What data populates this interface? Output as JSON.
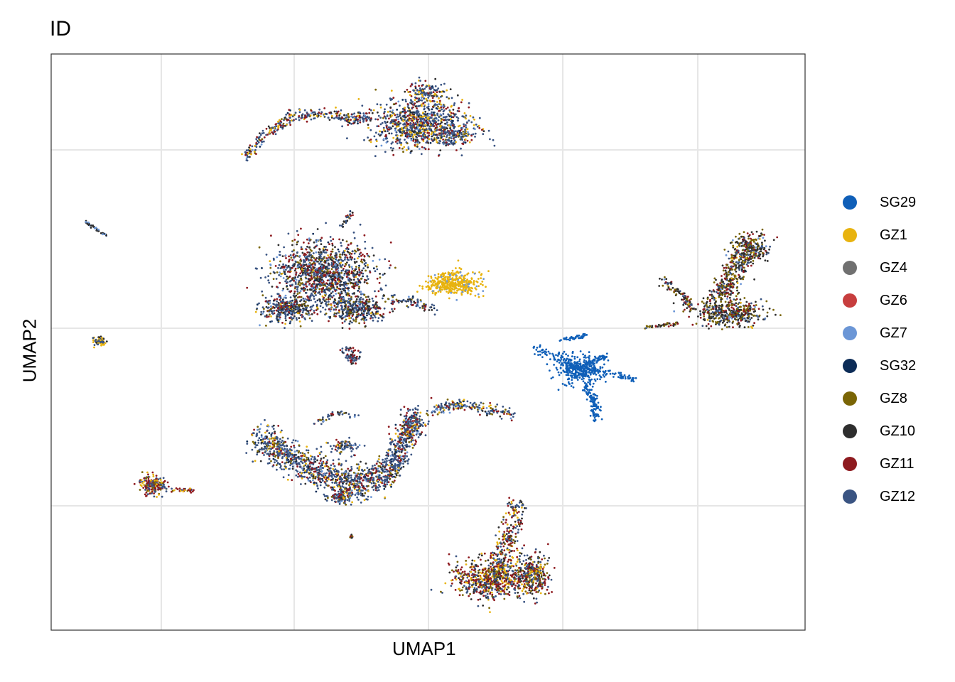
{
  "chart_data": {
    "type": "scatter",
    "title": "ID",
    "xlabel": "UMAP1",
    "ylabel": "UMAP2",
    "grid": true,
    "x_tick_labels": false,
    "y_tick_labels": false,
    "legend_position": "right",
    "legend": [
      {
        "name": "SG29",
        "color": "#0F5FB8"
      },
      {
        "name": "GZ1",
        "color": "#E8B30F"
      },
      {
        "name": "GZ4",
        "color": "#707070"
      },
      {
        "name": "GZ6",
        "color": "#C73E3E"
      },
      {
        "name": "GZ7",
        "color": "#6B96D6"
      },
      {
        "name": "SG32",
        "color": "#0C2C57"
      },
      {
        "name": "GZ8",
        "color": "#7A6505"
      },
      {
        "name": "GZ10",
        "color": "#2E2E2E"
      },
      {
        "name": "GZ11",
        "color": "#8E1A1F"
      },
      {
        "name": "GZ12",
        "color": "#3A5482"
      }
    ],
    "clusters": [
      {
        "id": "top-arc",
        "center": [
          0.5,
          0.82
        ],
        "mix": {
          "GZ12": 0.45,
          "GZ11": 0.18,
          "GZ1": 0.15,
          "GZ10": 0.08,
          "GZ7": 0.05,
          "GZ8": 0.04,
          "SG32": 0.05
        }
      },
      {
        "id": "left-tiny-streak",
        "center": [
          0.07,
          0.68
        ],
        "mix": {
          "GZ10": 0.5,
          "GZ7": 0.5
        }
      },
      {
        "id": "center-left-blob",
        "center": [
          0.38,
          0.58
        ],
        "mix": {
          "GZ12": 0.35,
          "GZ11": 0.2,
          "GZ10": 0.2,
          "GZ8": 0.12,
          "GZ7": 0.06,
          "GZ1": 0.03,
          "SG32": 0.04
        }
      },
      {
        "id": "center-yellow-patch",
        "center": [
          0.6,
          0.58
        ],
        "mix": {
          "GZ1": 0.9,
          "GZ7": 0.1
        }
      },
      {
        "id": "right-top",
        "center": [
          0.9,
          0.55
        ],
        "mix": {
          "GZ10": 0.35,
          "GZ8": 0.25,
          "GZ11": 0.18,
          "GZ12": 0.15,
          "GZ1": 0.04,
          "GZ7": 0.03
        }
      },
      {
        "id": "sg29-cluster",
        "center": [
          0.73,
          0.44
        ],
        "mix": {
          "SG29": 1.0
        }
      },
      {
        "id": "left-small-dot",
        "center": [
          0.05,
          0.5
        ],
        "mix": {
          "GZ12": 0.5,
          "GZ1": 0.3,
          "GZ10": 0.2
        }
      },
      {
        "id": "mid-small",
        "center": [
          0.4,
          0.47
        ],
        "mix": {
          "GZ12": 0.5,
          "GZ11": 0.3,
          "GZ10": 0.2
        }
      },
      {
        "id": "bottom-arc",
        "center": [
          0.4,
          0.25
        ],
        "mix": {
          "GZ12": 0.5,
          "GZ11": 0.15,
          "GZ8": 0.1,
          "GZ1": 0.08,
          "GZ10": 0.07,
          "SG32": 0.05,
          "GZ7": 0.05
        }
      },
      {
        "id": "left-bottom-small",
        "center": [
          0.14,
          0.25
        ],
        "mix": {
          "GZ11": 0.4,
          "GZ12": 0.3,
          "GZ1": 0.2,
          "GZ8": 0.1
        }
      },
      {
        "id": "bottom-right",
        "center": [
          0.62,
          0.1
        ],
        "mix": {
          "GZ11": 0.3,
          "GZ12": 0.25,
          "GZ10": 0.15,
          "GZ8": 0.15,
          "GZ1": 0.15
        }
      }
    ]
  }
}
